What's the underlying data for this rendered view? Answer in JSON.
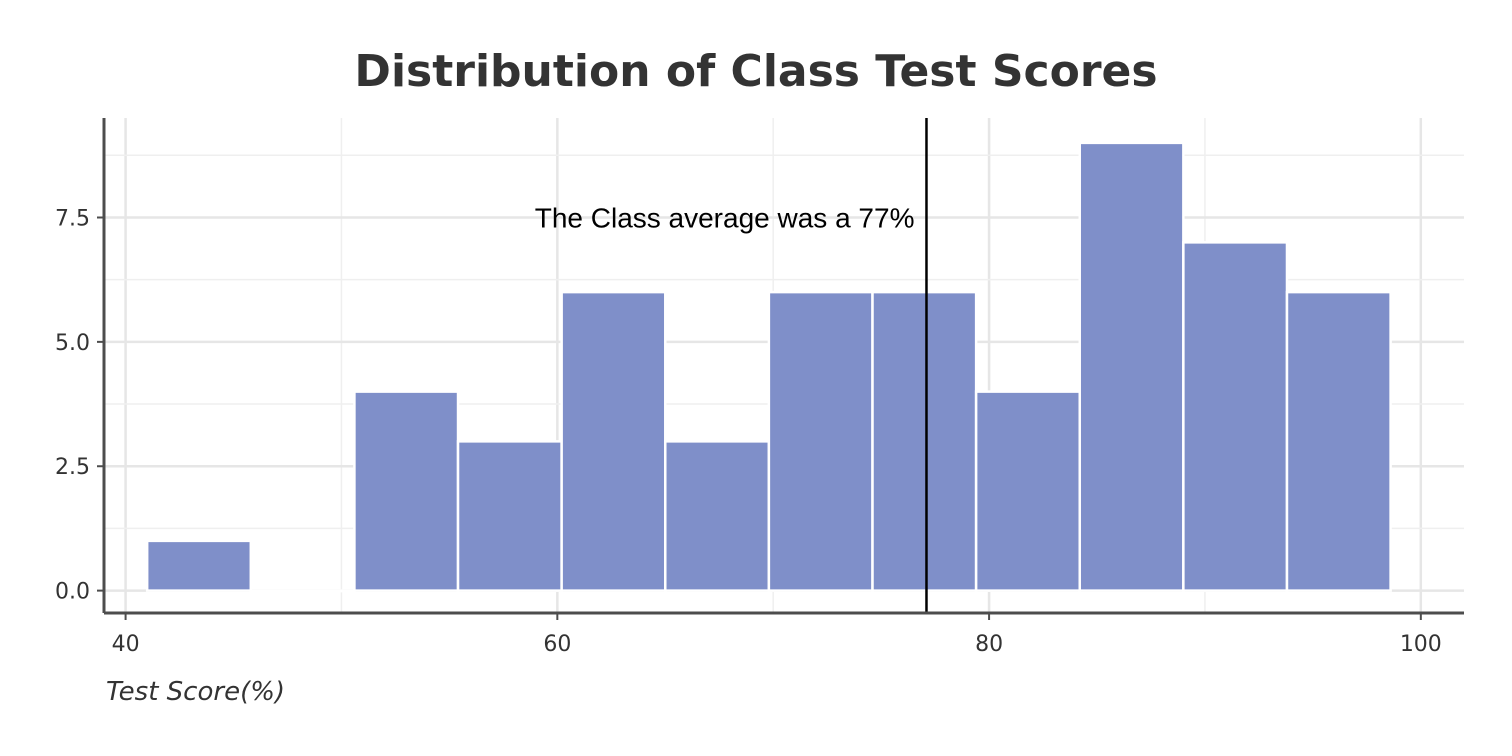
{
  "chart_data": {
    "type": "bar",
    "title": "Distribution of Class Test Scores",
    "xlabel": "Test Score(%)",
    "ylabel": "",
    "xlim": [
      39,
      102
    ],
    "ylim": [
      -0.45,
      9.5
    ],
    "x_ticks": [
      40,
      60,
      80,
      100
    ],
    "x_tick_labels": [
      "40",
      "60",
      "80",
      "100"
    ],
    "y_ticks": [
      0,
      2.5,
      5,
      7.5
    ],
    "y_tick_labels": [
      "0.0",
      "2.5",
      "5.0",
      "7.5"
    ],
    "bins": [
      {
        "x0": 41.0,
        "x1": 45.8,
        "count": 1
      },
      {
        "x0": 45.8,
        "x1": 50.6,
        "count": 0
      },
      {
        "x0": 50.6,
        "x1": 55.4,
        "count": 4
      },
      {
        "x0": 55.4,
        "x1": 60.2,
        "count": 3
      },
      {
        "x0": 60.2,
        "x1": 65.0,
        "count": 6
      },
      {
        "x0": 65.0,
        "x1": 69.8,
        "count": 3
      },
      {
        "x0": 69.8,
        "x1": 74.6,
        "count": 6
      },
      {
        "x0": 74.6,
        "x1": 79.4,
        "count": 6
      },
      {
        "x0": 79.4,
        "x1": 84.2,
        "count": 4
      },
      {
        "x0": 84.2,
        "x1": 89.0,
        "count": 9
      },
      {
        "x0": 89.0,
        "x1": 93.8,
        "count": 7
      },
      {
        "x0": 93.8,
        "x1": 98.6,
        "count": 6
      }
    ],
    "mean_line": {
      "x": 77.1,
      "label": "The Class average was a 77%",
      "label_y": 7.5
    },
    "bar_color": "#7f8fc9",
    "grid": true,
    "legend": "none"
  }
}
